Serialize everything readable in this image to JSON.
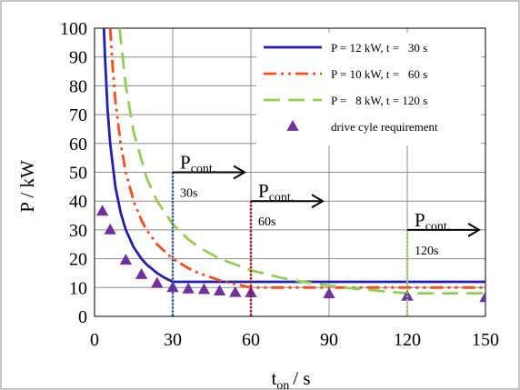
{
  "chart_data": {
    "type": "line",
    "xlabel": "t",
    "xlabel_sub": "on",
    "xlabel_unit": "/ s",
    "ylabel": "P / kW",
    "xlim": [
      0,
      150
    ],
    "ylim": [
      0,
      100
    ],
    "xticks": [
      0,
      30,
      60,
      90,
      120,
      150
    ],
    "yticks": [
      0,
      10,
      20,
      30,
      40,
      50,
      60,
      70,
      80,
      90,
      100
    ],
    "grid": true,
    "legend_position": "top-right",
    "series": [
      {
        "name": "P = 12 kW, t =   30 s",
        "color": "#1f1fb4",
        "dash": "solid",
        "x": [
          3.6,
          4,
          5,
          6,
          8,
          10,
          12,
          15,
          18,
          20,
          24,
          27,
          30,
          40,
          60,
          90,
          120,
          150
        ],
        "y": [
          100,
          90,
          72,
          60,
          45,
          36,
          30,
          24,
          20,
          18,
          15,
          13.3,
          12,
          12,
          12,
          12,
          12,
          12
        ]
      },
      {
        "name": "P = 10 kW, t =   60 s",
        "color": "#ff4a17",
        "dash": "dashdotdot",
        "x": [
          6,
          7,
          8,
          10,
          12,
          15,
          18,
          20,
          24,
          30,
          36,
          40,
          48,
          50,
          60,
          90,
          120,
          150
        ],
        "y": [
          100,
          85.7,
          75,
          60,
          50,
          40,
          33.3,
          30,
          25,
          20,
          16.7,
          15,
          12.5,
          12,
          10,
          10,
          10,
          10
        ]
      },
      {
        "name": "P =   8 kW, t = 120 s",
        "color": "#8fd14f",
        "dash": "longdash",
        "x": [
          9.6,
          12,
          15,
          20,
          24,
          30,
          36,
          40,
          48,
          60,
          72,
          80,
          90,
          100,
          120,
          150
        ],
        "y": [
          100,
          80,
          64,
          48,
          40,
          32,
          26.7,
          24,
          20,
          16,
          13.3,
          12,
          10.7,
          9.6,
          8,
          8
        ]
      },
      {
        "name": "drive cyle requirement",
        "color": "#7030a0",
        "marker": "triangle",
        "x": [
          3,
          6,
          12,
          18,
          24,
          30,
          36,
          42,
          48,
          54,
          60,
          90,
          120,
          150
        ],
        "y": [
          36.5,
          30,
          19.5,
          14.5,
          11.5,
          10,
          9.5,
          9.3,
          8.8,
          8.3,
          8.2,
          7.8,
          7,
          6.5
        ]
      }
    ],
    "vertical_markers": [
      {
        "x": 30,
        "y_top": 50,
        "color": "#1f4e9e",
        "label_main": "P",
        "label_sub": "cont.",
        "label_time": "30s"
      },
      {
        "x": 60,
        "y_top": 40,
        "color": "#c00000",
        "label_main": "P",
        "label_sub": "cont.",
        "label_time": "60s"
      },
      {
        "x": 120,
        "y_top": 30,
        "color": "#8fd14f",
        "label_main": "P",
        "label_sub": "cont.",
        "label_time": "120s"
      }
    ]
  }
}
